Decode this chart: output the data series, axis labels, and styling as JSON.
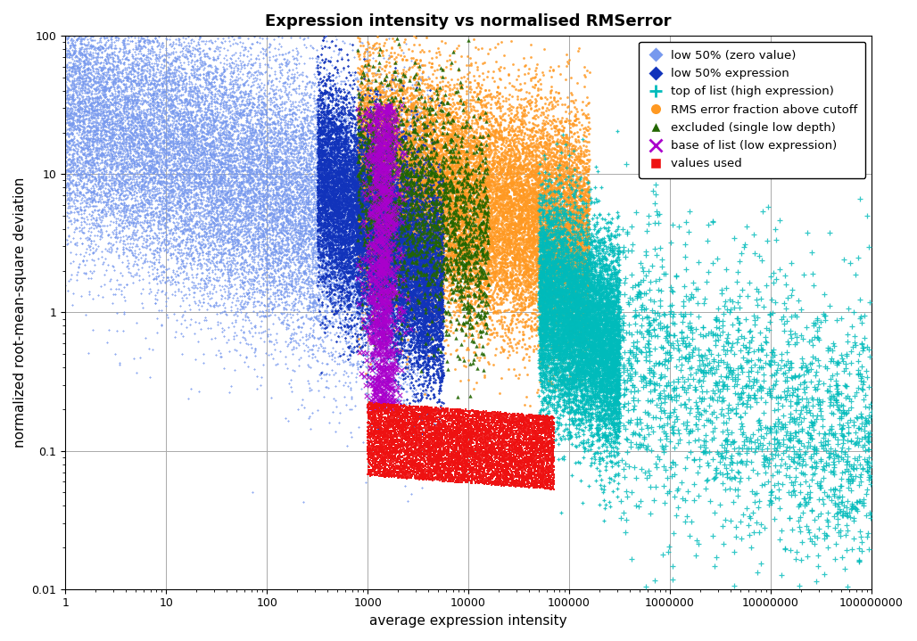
{
  "title": "Expression intensity vs normalised RMSerror",
  "xlabel": "average expression intensity",
  "ylabel": "normalized root-mean-square deviation",
  "xlim": [
    1,
    100000000
  ],
  "ylim": [
    0.01,
    100
  ],
  "background_color": "#ffffff",
  "colors": {
    "light_blue": "#7799EE",
    "dark_blue": "#1133BB",
    "teal": "#00BBBB",
    "orange": "#FF9922",
    "green": "#226600",
    "purple": "#AA00CC",
    "red": "#EE1111"
  },
  "seed": 42
}
